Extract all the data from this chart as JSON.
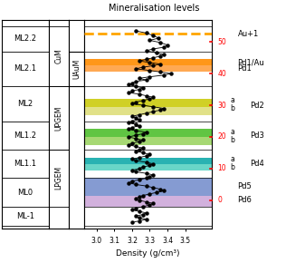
{
  "title": "Mineralisation levels",
  "xlabel": "Density (g/cm³)",
  "xlim": [
    2.93,
    3.65
  ],
  "xticks": [
    3.0,
    3.1,
    3.2,
    3.3,
    3.4,
    3.5
  ],
  "ymin": -9,
  "ymax": 57,
  "rows": {
    "ML2.2": [
      47,
      55
    ],
    "ML2.1": [
      36,
      47
    ],
    "ML2": [
      25,
      36
    ],
    "ML1.2": [
      16,
      25
    ],
    "ML1.1": [
      7,
      16
    ],
    "ML0": [
      -2,
      7
    ],
    "ML-1": [
      -8,
      -2
    ]
  },
  "col_geo": {
    "CuM": [
      36,
      55
    ],
    "UPGEM": [
      16,
      36
    ],
    "LPGEM": [
      -2,
      16
    ]
  },
  "col_uaum": [
    36,
    47
  ],
  "bands": [
    {
      "yb": 42.5,
      "yt": 44.5,
      "color": "#FF8C00",
      "alpha": 0.9
    },
    {
      "yb": 40.5,
      "yt": 42.5,
      "color": "#FFA040",
      "alpha": 0.9
    },
    {
      "yb": 29.5,
      "yt": 32.0,
      "color": "#C8C800",
      "alpha": 0.85
    },
    {
      "yb": 27.0,
      "yt": 29.5,
      "color": "#D8D860",
      "alpha": 0.75
    },
    {
      "yb": 20.0,
      "yt": 22.5,
      "color": "#44BB22",
      "alpha": 0.85
    },
    {
      "yb": 17.5,
      "yt": 20.0,
      "color": "#88CC44",
      "alpha": 0.75
    },
    {
      "yb": 11.5,
      "yt": 13.5,
      "color": "#11AAAA",
      "alpha": 0.9
    },
    {
      "yb": 9.5,
      "yt": 11.5,
      "color": "#44CCBB",
      "alpha": 0.8
    },
    {
      "yb": 1.5,
      "yt": 7.0,
      "color": "#4466BB",
      "alpha": 0.65
    },
    {
      "yb": -2.0,
      "yt": 1.5,
      "color": "#BB88CC",
      "alpha": 0.65
    }
  ],
  "au1_y": 52.5,
  "red_ticks": [
    [
      50,
      "50"
    ],
    [
      40,
      "40"
    ],
    [
      30,
      "30"
    ],
    [
      20,
      "20"
    ],
    [
      10,
      "10"
    ],
    [
      0,
      "0"
    ]
  ],
  "right_labels": [
    {
      "y": 52.5,
      "text": "Au+1",
      "a": null,
      "b": null
    },
    {
      "y": 43.5,
      "text": "Pd1/Au",
      "a": null,
      "b": null
    },
    {
      "y": 41.5,
      "text": "Pd1",
      "a": null,
      "b": null
    },
    {
      "y": 30.0,
      "text": "Pd2",
      "a": 31.5,
      "b": 29.0
    },
    {
      "y": 20.5,
      "text": "Pd3",
      "a": 21.5,
      "b": 19.0
    },
    {
      "y": 11.5,
      "text": "Pd4",
      "a": 13.0,
      "b": 10.5
    },
    {
      "y": 4.5,
      "text": "Pd5",
      "a": null,
      "b": null
    },
    {
      "y": 0.0,
      "text": "Pd6",
      "a": null,
      "b": null
    }
  ],
  "density_data": [
    [
      3.22,
      53.5
    ],
    [
      3.28,
      52.8
    ],
    [
      3.32,
      52.0
    ],
    [
      3.35,
      51.2
    ],
    [
      3.3,
      50.5
    ],
    [
      3.36,
      49.8
    ],
    [
      3.4,
      49.0
    ],
    [
      3.38,
      48.3
    ],
    [
      3.32,
      47.8
    ],
    [
      3.28,
      47.2
    ],
    [
      3.34,
      46.5
    ],
    [
      3.38,
      46.0
    ],
    [
      3.36,
      45.5
    ],
    [
      3.32,
      45.0
    ],
    [
      3.28,
      44.5
    ],
    [
      3.24,
      44.0
    ],
    [
      3.3,
      43.5
    ],
    [
      3.36,
      43.0
    ],
    [
      3.32,
      42.5
    ],
    [
      3.26,
      42.0
    ],
    [
      3.22,
      41.5
    ],
    [
      3.3,
      41.0
    ],
    [
      3.36,
      40.5
    ],
    [
      3.42,
      40.0
    ],
    [
      3.38,
      39.5
    ],
    [
      3.3,
      39.0
    ],
    [
      3.24,
      38.5
    ],
    [
      3.28,
      38.0
    ],
    [
      3.22,
      37.5
    ],
    [
      3.2,
      37.0
    ],
    [
      3.18,
      36.5
    ],
    [
      3.22,
      36.0
    ],
    [
      3.26,
      35.5
    ],
    [
      3.24,
      35.0
    ],
    [
      3.2,
      34.5
    ],
    [
      3.18,
      34.0
    ],
    [
      3.24,
      33.5
    ],
    [
      3.28,
      33.0
    ],
    [
      3.32,
      32.5
    ],
    [
      3.3,
      32.0
    ],
    [
      3.26,
      31.5
    ],
    [
      3.22,
      31.0
    ],
    [
      3.2,
      30.5
    ],
    [
      3.26,
      30.0
    ],
    [
      3.32,
      29.5
    ],
    [
      3.38,
      29.0
    ],
    [
      3.36,
      28.5
    ],
    [
      3.32,
      28.0
    ],
    [
      3.28,
      27.5
    ],
    [
      3.24,
      27.0
    ],
    [
      3.2,
      26.5
    ],
    [
      3.22,
      26.0
    ],
    [
      3.24,
      25.5
    ],
    [
      3.2,
      25.0
    ],
    [
      3.18,
      24.5
    ],
    [
      3.22,
      24.0
    ],
    [
      3.24,
      23.5
    ],
    [
      3.2,
      23.0
    ],
    [
      3.18,
      22.5
    ],
    [
      3.22,
      22.0
    ],
    [
      3.28,
      21.5
    ],
    [
      3.26,
      21.0
    ],
    [
      3.22,
      20.5
    ],
    [
      3.18,
      20.0
    ],
    [
      3.22,
      19.5
    ],
    [
      3.26,
      19.0
    ],
    [
      3.24,
      18.5
    ],
    [
      3.2,
      18.0
    ],
    [
      3.18,
      17.5
    ],
    [
      3.22,
      17.0
    ],
    [
      3.26,
      16.5
    ],
    [
      3.24,
      16.0
    ],
    [
      3.22,
      15.5
    ],
    [
      3.26,
      15.0
    ],
    [
      3.3,
      14.5
    ],
    [
      3.28,
      14.0
    ],
    [
      3.24,
      13.5
    ],
    [
      3.2,
      13.0
    ],
    [
      3.22,
      12.5
    ],
    [
      3.28,
      12.0
    ],
    [
      3.32,
      11.5
    ],
    [
      3.3,
      11.0
    ],
    [
      3.26,
      10.5
    ],
    [
      3.24,
      10.0
    ],
    [
      3.2,
      9.5
    ],
    [
      3.22,
      9.0
    ],
    [
      3.28,
      8.5
    ],
    [
      3.32,
      8.0
    ],
    [
      3.3,
      7.5
    ],
    [
      3.28,
      7.0
    ],
    [
      3.24,
      6.5
    ],
    [
      3.2,
      6.0
    ],
    [
      3.18,
      5.5
    ],
    [
      3.22,
      5.0
    ],
    [
      3.28,
      4.5
    ],
    [
      3.32,
      4.0
    ],
    [
      3.36,
      3.5
    ],
    [
      3.38,
      3.0
    ],
    [
      3.34,
      2.5
    ],
    [
      3.3,
      2.0
    ],
    [
      3.26,
      1.5
    ],
    [
      3.24,
      1.0
    ],
    [
      3.22,
      0.5
    ],
    [
      3.24,
      0.0
    ],
    [
      3.28,
      -0.5
    ],
    [
      3.32,
      -1.0
    ],
    [
      3.3,
      -1.5
    ],
    [
      3.26,
      -2.0
    ],
    [
      3.22,
      -2.5
    ],
    [
      3.2,
      -3.0
    ],
    [
      3.24,
      -3.5
    ],
    [
      3.28,
      -4.0
    ],
    [
      3.26,
      -4.5
    ],
    [
      3.22,
      -5.0
    ],
    [
      3.24,
      -5.5
    ],
    [
      3.28,
      -6.0
    ],
    [
      3.24,
      -6.5
    ],
    [
      3.2,
      -7.0
    ]
  ]
}
